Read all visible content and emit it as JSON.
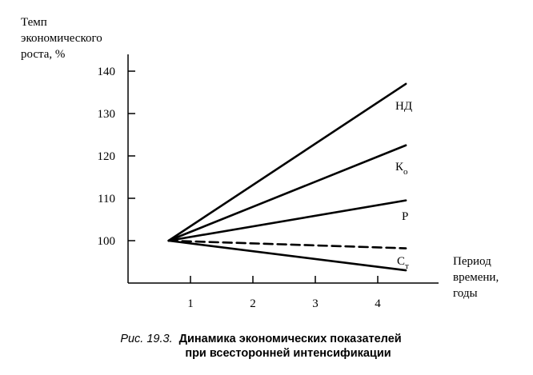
{
  "chart_data": {
    "type": "line",
    "ylabel": [
      "Темп",
      "экономического",
      "роста, %"
    ],
    "xlabel": [
      "Период",
      "времени,",
      "годы"
    ],
    "xlim": [
      0,
      4.6
    ],
    "ylim": [
      91,
      145
    ],
    "x_ticks": [
      "1",
      "2",
      "3",
      "4"
    ],
    "y_ticks": [
      "100",
      "110",
      "120",
      "130",
      "140"
    ],
    "series": [
      {
        "name": "НД",
        "style": "solid",
        "x": [
          0.65,
          4.45
        ],
        "y": [
          100,
          137
        ]
      },
      {
        "name": "К",
        "sub": "о",
        "style": "solid",
        "x": [
          0.65,
          4.45
        ],
        "y": [
          100,
          122.5
        ]
      },
      {
        "name": "Р",
        "style": "solid",
        "x": [
          0.65,
          4.45
        ],
        "y": [
          100,
          109.5
        ]
      },
      {
        "name": "С",
        "sub": "т",
        "style": "dashed",
        "x": [
          0.65,
          4.45
        ],
        "y": [
          100,
          98.2
        ]
      },
      {
        "name": "",
        "style": "solid",
        "x": [
          0.65,
          4.45
        ],
        "y": [
          100,
          93
        ]
      }
    ]
  },
  "caption": {
    "prefix": "Рис. 19.3.",
    "title_line1": "Динамика экономических показателей",
    "title_line2": "при всесторонней интенсификации"
  },
  "colors": {
    "ink": "#000000",
    "background": "#ffffff"
  }
}
